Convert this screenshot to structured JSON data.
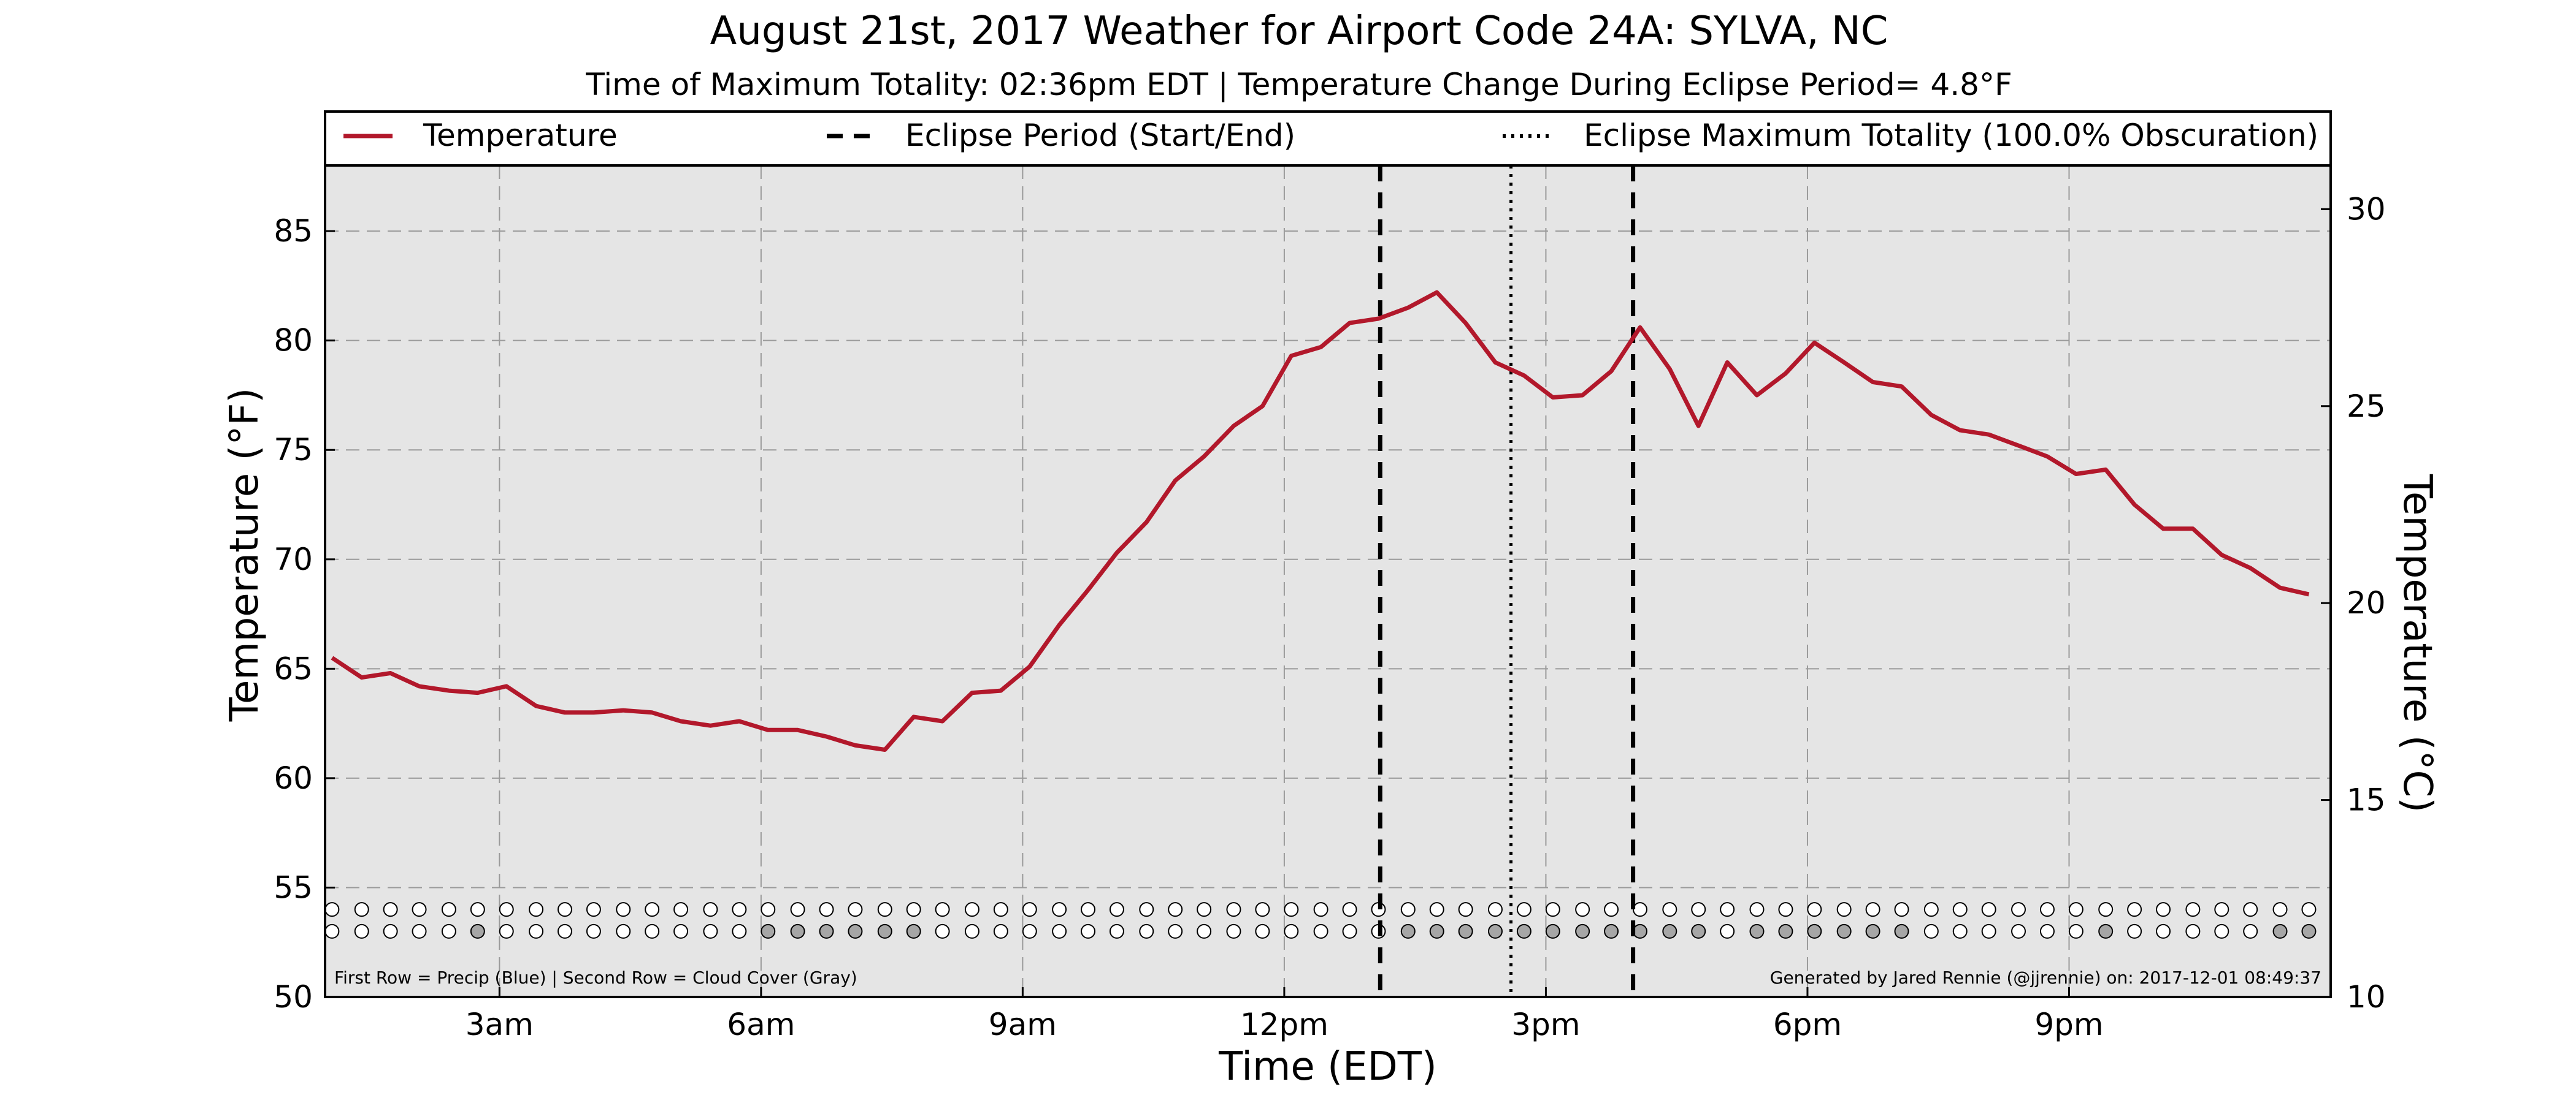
{
  "chart_data": {
    "type": "line",
    "title": "August 21st, 2017 Weather for Airport Code 24A: SYLVA, NC",
    "subtitle": "Time of Maximum Totality: 02:36pm EDT | Temperature Change During Eclipse Period= 4.8°F",
    "xlabel": "Time (EDT)",
    "ylabel_left": "Temperature (°F)",
    "ylabel_right": "Temperature (°C)",
    "x_unit": "hours after midnight EDT",
    "xlim": [
      1.0,
      24.0
    ],
    "ylim": [
      50,
      88
    ],
    "ylim_celsius": [
      10,
      31.11
    ],
    "x_ticks": [
      {
        "x": 3,
        "label": "3am"
      },
      {
        "x": 6,
        "label": "6am"
      },
      {
        "x": 9,
        "label": "9am"
      },
      {
        "x": 12,
        "label": "12pm"
      },
      {
        "x": 15,
        "label": "3pm"
      },
      {
        "x": 18,
        "label": "6pm"
      },
      {
        "x": 21,
        "label": "9pm"
      }
    ],
    "y_ticks": [
      50,
      55,
      60,
      65,
      70,
      75,
      80,
      85
    ],
    "y_ticks_right": [
      10,
      15,
      20,
      25,
      30
    ],
    "grid": true,
    "legend": {
      "placement": "top",
      "items": [
        {
          "label": "Temperature",
          "style": "solid",
          "color": "#b2182b"
        },
        {
          "label": "Eclipse Period (Start/End)",
          "style": "dashed",
          "color": "#000000"
        },
        {
          "label": "Eclipse Maximum Totality (100.0% Obscuration)",
          "style": "dotted",
          "color": "#000000"
        }
      ]
    },
    "series": [
      {
        "name": "Temperature",
        "color": "#b2182b",
        "x": [
          1.08,
          1.42,
          1.75,
          2.08,
          2.42,
          2.75,
          3.08,
          3.42,
          3.75,
          4.08,
          4.42,
          4.75,
          5.08,
          5.42,
          5.75,
          6.08,
          6.42,
          6.75,
          7.08,
          7.42,
          7.75,
          8.08,
          8.42,
          8.75,
          9.08,
          9.42,
          9.75,
          10.08,
          10.42,
          10.75,
          11.08,
          11.42,
          11.75,
          12.08,
          12.42,
          12.75,
          13.08,
          13.42,
          13.75,
          14.08,
          14.42,
          14.75,
          15.08,
          15.42,
          15.75,
          16.08,
          16.42,
          16.75,
          17.08,
          17.42,
          17.75,
          18.08,
          18.42,
          18.75,
          19.08,
          19.42,
          19.75,
          20.08,
          20.42,
          20.75,
          21.08,
          21.42,
          21.75,
          22.08,
          22.42,
          22.75,
          23.08,
          23.42,
          23.75
        ],
        "values": [
          65.5,
          64.6,
          64.8,
          64.2,
          64.0,
          63.9,
          64.2,
          63.3,
          63.0,
          63.0,
          63.1,
          63.0,
          62.6,
          62.4,
          62.6,
          62.2,
          62.2,
          61.9,
          61.5,
          61.3,
          62.8,
          62.6,
          63.9,
          64.0,
          65.1,
          67.0,
          68.6,
          70.3,
          71.7,
          73.6,
          74.7,
          76.1,
          77.0,
          79.3,
          79.7,
          80.8,
          81.0,
          81.5,
          82.2,
          80.8,
          79.0,
          78.4,
          77.4,
          77.5,
          78.6,
          80.6,
          78.7,
          76.1,
          79.0,
          77.5,
          78.5,
          79.9,
          79.0,
          78.1,
          77.9,
          76.6,
          75.9,
          75.7,
          75.2,
          74.7,
          73.9,
          74.1,
          72.5,
          71.4,
          71.4,
          70.2,
          69.6,
          68.7,
          68.4
        ]
      }
    ],
    "eclipse_period": {
      "start": 13.1,
      "end": 16.0,
      "color": "#000000"
    },
    "eclipse_max_totality": {
      "x": 14.6,
      "color": "#000000"
    },
    "indicator_rows": {
      "y_precip": 54.0,
      "y_cloud": 53.0,
      "precip": [
        0,
        0,
        0,
        0,
        0,
        0,
        0,
        0,
        0,
        0,
        0,
        0,
        0,
        0,
        0,
        0,
        0,
        0,
        0,
        0,
        0,
        0,
        0,
        0,
        0,
        0,
        0,
        0,
        0,
        0,
        0,
        0,
        0,
        0,
        0,
        0,
        0,
        0,
        0,
        0,
        0,
        0,
        0,
        0,
        0,
        0,
        0,
        0,
        0,
        0,
        0,
        0,
        0,
        0,
        0,
        0,
        0,
        0,
        0,
        0,
        0,
        0,
        0,
        0,
        0,
        0,
        0,
        0,
        0
      ],
      "cloud": [
        0,
        0,
        0,
        0,
        0,
        1,
        0,
        0,
        0,
        0,
        0,
        0,
        0,
        0,
        0,
        1,
        1,
        1,
        1,
        1,
        1,
        0,
        0,
        0,
        0,
        0,
        0,
        0,
        0,
        0,
        0,
        0,
        0,
        0,
        0,
        0,
        0,
        1,
        1,
        1,
        1,
        1,
        1,
        1,
        1,
        1,
        1,
        1,
        0,
        1,
        1,
        1,
        1,
        1,
        1,
        0,
        0,
        0,
        0,
        0,
        0,
        1,
        0,
        0,
        0,
        0,
        0,
        1,
        1
      ],
      "empty_color": "#ffffff",
      "precip_color": "#4a7fc0",
      "cloud_color": "#a6a6a6"
    },
    "footnote_left": "First Row = Precip (Blue) | Second Row = Cloud Cover (Gray)",
    "footnote_right": "Generated by Jared Rennie (@jjrennie) on: 2017-12-01 08:49:37",
    "background": "#e5e5e5"
  }
}
